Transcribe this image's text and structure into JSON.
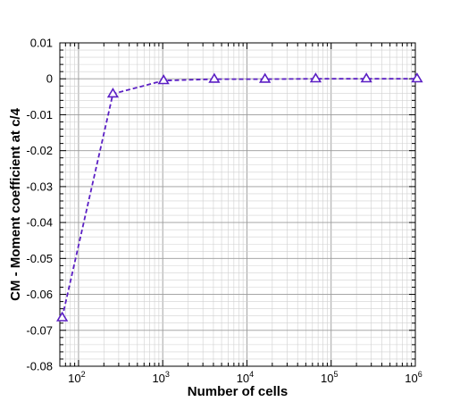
{
  "chart_data": {
    "type": "line",
    "title": "",
    "xlabel": "Number of cells",
    "ylabel": "CM - Moment coefficient at c/4",
    "x_scale": "log",
    "xlim": [
      60,
      1000000
    ],
    "ylim": [
      -0.08,
      0.01
    ],
    "grid": true,
    "x_ticks": [
      {
        "base": "10",
        "exp": "2"
      },
      {
        "base": "10",
        "exp": "3"
      },
      {
        "base": "10",
        "exp": "4"
      },
      {
        "base": "10",
        "exp": "5"
      },
      {
        "base": "10",
        "exp": "6"
      }
    ],
    "y_ticks": [
      "0.01",
      "0",
      "-0.01",
      "-0.02",
      "-0.03",
      "-0.04",
      "-0.05",
      "-0.06",
      "-0.07",
      "-0.08"
    ],
    "series": [
      {
        "marker": "triangle-open",
        "line_style": "dashed",
        "x": [
          64,
          256,
          1024,
          4096,
          16384,
          65536,
          262144,
          1048576
        ],
        "y": [
          -0.0665,
          -0.0042,
          -0.0005,
          -0.0001,
          -0.0001,
          0.0,
          0.0,
          0.0
        ]
      }
    ],
    "colors": {
      "series": "#5b1fc4",
      "grid": "#d0d0d0",
      "axis": "#000000"
    }
  }
}
